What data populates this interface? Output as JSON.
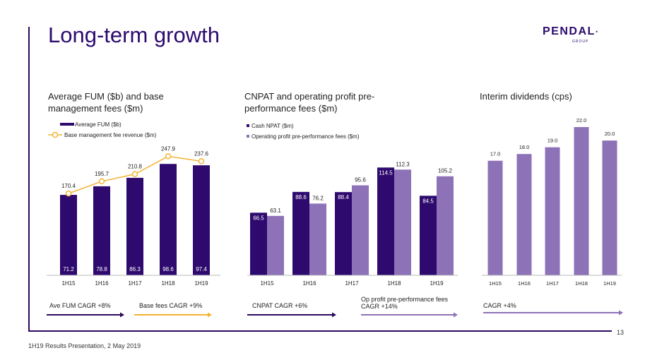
{
  "page": {
    "title": "Long-term growth",
    "logo_text": "PENDAL",
    "logo_subtext": "GROUP",
    "footer": "1H19 Results Presentation, 2 May 2019",
    "page_number": "13"
  },
  "colors": {
    "dark_purple": "#2e0a6e",
    "light_purple": "#8e72b8",
    "orange": "#f5b335",
    "navy": "#2b0a5e"
  },
  "chart_data": [
    {
      "type": "bar",
      "title": "Average FUM ($b) and base management fees ($m)",
      "categories": [
        "1H15",
        "1H16",
        "1H17",
        "1H18",
        "1H19"
      ],
      "series": [
        {
          "name": "Average FUM ($b)",
          "kind": "bar",
          "values": [
            71.2,
            78.8,
            86.3,
            98.6,
            97.4
          ],
          "value_labels": [
            "71.2",
            "78.8",
            "86.3",
            "98.6",
            "97.4"
          ]
        },
        {
          "name": "Base management fee revenue ($m)",
          "kind": "line",
          "values": [
            170.4,
            195.7,
            210.8,
            247.9,
            237.6
          ],
          "value_labels": [
            "170.4",
            "195.7",
            "210.8",
            "247.9",
            "237.6"
          ]
        }
      ],
      "annotations": [
        "Ave FUM CAGR +8%",
        "Base fees CAGR +9%"
      ]
    },
    {
      "type": "bar",
      "title": "CNPAT and operating profit pre-performance fees ($m)",
      "categories": [
        "1H15",
        "1H16",
        "1H17",
        "1H18",
        "1H19"
      ],
      "series": [
        {
          "name": "Cash NPAT ($m)",
          "values": [
            66.5,
            88.6,
            88.4,
            114.5,
            84.5
          ],
          "value_labels": [
            "66.5",
            "88.6",
            "88.4",
            "114.5",
            "84.5"
          ]
        },
        {
          "name": "Operating profit pre-performance fees ($m)",
          "values": [
            63.1,
            76.2,
            95.6,
            112.3,
            105.2
          ],
          "value_labels": [
            "63.1",
            "76.2",
            "95.6",
            "112.3",
            "105.2"
          ]
        }
      ],
      "annotations": [
        "CNPAT CAGR +6%",
        "Op profit pre-performance fees CAGR +14%"
      ]
    },
    {
      "type": "bar",
      "title": "Interim dividends (cps)",
      "categories": [
        "1H15",
        "1H16",
        "1H17",
        "1H18",
        "1H19"
      ],
      "series": [
        {
          "values": [
            17.0,
            18.0,
            19.0,
            22.0,
            20.0
          ],
          "value_labels": [
            "17.0",
            "18.0",
            "19.0",
            "22.0",
            "20.0"
          ]
        }
      ],
      "annotations": [
        "CAGR +4%"
      ]
    }
  ]
}
